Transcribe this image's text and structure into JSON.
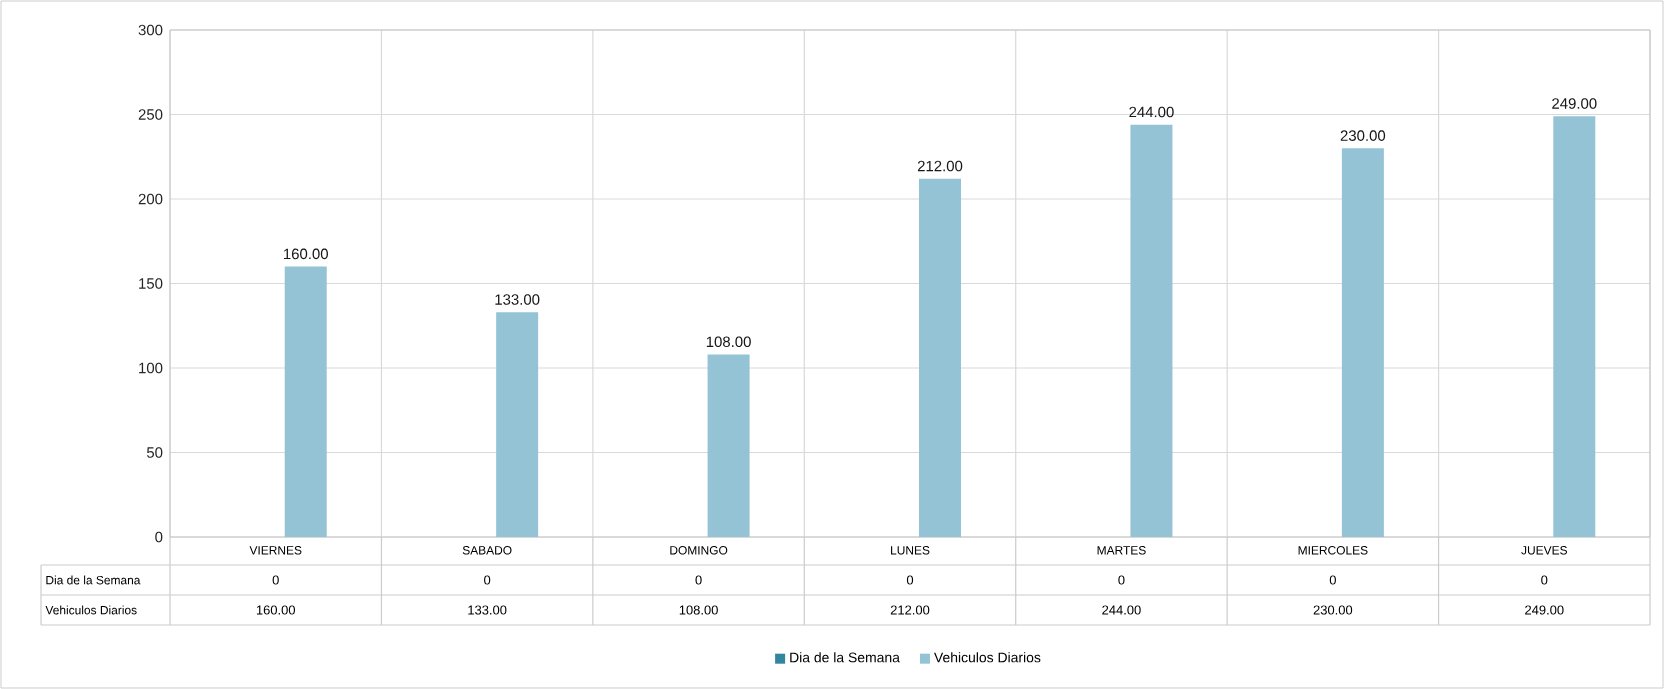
{
  "chart_data": {
    "type": "bar",
    "categories": [
      "VIERNES",
      "SABADO",
      "DOMINGO",
      "LUNES",
      "MARTES",
      "MIERCOLES",
      "JUEVES"
    ],
    "series": [
      {
        "name": "Dia de la Semana",
        "color": "#31859c",
        "values": [
          0,
          0,
          0,
          0,
          0,
          0,
          0
        ],
        "value_labels": [
          "0",
          "0",
          "0",
          "0",
          "0",
          "0",
          "0"
        ]
      },
      {
        "name": "Vehiculos Diarios",
        "color": "#93c3d4",
        "values": [
          160,
          133,
          108,
          212,
          244,
          230,
          249
        ],
        "value_labels": [
          "160.00",
          "133.00",
          "108.00",
          "212.00",
          "244.00",
          "230.00",
          "249.00"
        ]
      }
    ],
    "ylim": [
      0,
      300
    ],
    "yticks": [
      0,
      50,
      100,
      150,
      200,
      250,
      300
    ],
    "grid": true,
    "legend": "bottom"
  }
}
